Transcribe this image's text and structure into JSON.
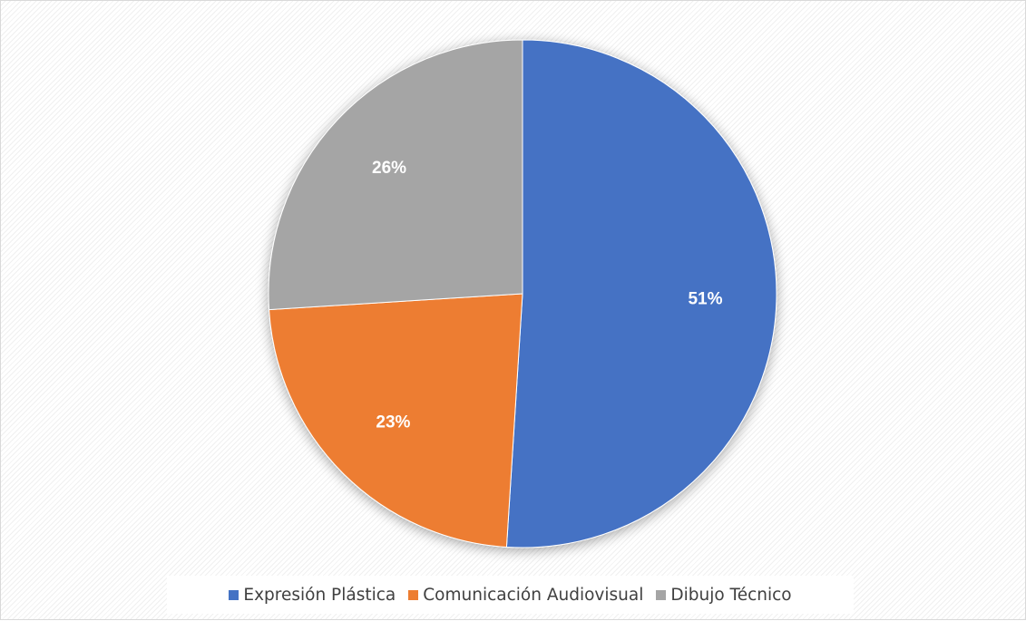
{
  "chart_data": {
    "type": "pie",
    "categories": [
      "Expresión Plástica",
      "Comunicación Audiovisual",
      "Dibujo Técnico"
    ],
    "values": [
      51,
      23,
      26
    ],
    "labels": [
      "51%",
      "23%",
      "26%"
    ],
    "colors": [
      "#4472C4",
      "#ED7D31",
      "#A5A5A5"
    ],
    "start_angle_deg": 0,
    "direction": "clockwise",
    "legend_position": "bottom",
    "title": ""
  }
}
